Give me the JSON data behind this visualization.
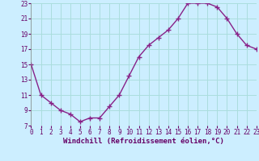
{
  "x": [
    0,
    1,
    2,
    3,
    4,
    5,
    6,
    7,
    8,
    9,
    10,
    11,
    12,
    13,
    14,
    15,
    16,
    17,
    18,
    19,
    20,
    21,
    22,
    23
  ],
  "y": [
    15,
    11,
    10,
    9,
    8.5,
    7.5,
    8,
    8,
    9.5,
    11,
    13.5,
    16,
    17.5,
    18.5,
    19.5,
    21,
    23,
    23,
    23,
    22.5,
    21,
    19,
    17.5,
    17
  ],
  "line_color": "#882288",
  "marker": "+",
  "marker_size": 4,
  "marker_lw": 1.0,
  "bg_color": "#cceeff",
  "grid_color": "#aadddd",
  "xlabel": "Windchill (Refroidissement éolien,°C)",
  "xlim": [
    0,
    23
  ],
  "ylim": [
    7,
    23
  ],
  "yticks": [
    7,
    9,
    11,
    13,
    15,
    17,
    19,
    21,
    23
  ],
  "xticks": [
    0,
    1,
    2,
    3,
    4,
    5,
    6,
    7,
    8,
    9,
    10,
    11,
    12,
    13,
    14,
    15,
    16,
    17,
    18,
    19,
    20,
    21,
    22,
    23
  ],
  "tick_fontsize": 5.5,
  "xlabel_fontsize": 6.5,
  "line_width": 1.0
}
